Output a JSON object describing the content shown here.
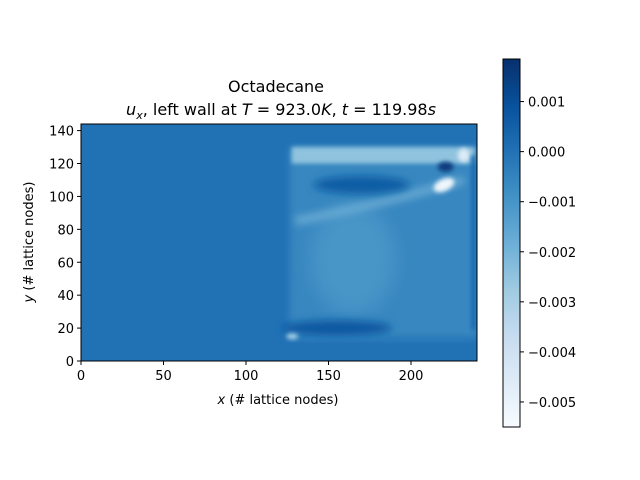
{
  "chart_data": {
    "type": "heatmap",
    "title": "Octadecane",
    "subtitle": {
      "prefix_symbol": "u",
      "prefix_sub": "x",
      "mid_text": ", left wall at ",
      "t_sym": "T",
      "t_val": " = 923.0",
      "t_unit": "K",
      "sep": ", ",
      "time_sym": "t",
      "time_val": " = 119.98",
      "time_unit": "s"
    },
    "xlabel": {
      "var": "x",
      "text": " (# lattice nodes)"
    },
    "ylabel": {
      "var": "y",
      "text": " (# lattice nodes)"
    },
    "xlim": [
      0,
      240
    ],
    "ylim": [
      0,
      144
    ],
    "x_ticks": [
      0,
      50,
      100,
      150,
      200
    ],
    "y_ticks": [
      0,
      20,
      40,
      60,
      80,
      100,
      120,
      140
    ],
    "colormap": "Blues",
    "colorbar": {
      "range": [
        -0.0055,
        0.00185
      ],
      "ticks": [
        0.001,
        0.0,
        -0.001,
        -0.002,
        -0.003,
        -0.004,
        -0.005
      ],
      "tick_labels": [
        "0.001",
        "0.000",
        "−0.001",
        "−0.002",
        "−0.003",
        "−0.004",
        "−0.005"
      ]
    },
    "field": {
      "background_value": 0.0,
      "melt_region": {
        "x": [
          124,
          240
        ],
        "y": [
          13,
          131
        ]
      },
      "features": [
        {
          "kind": "cavity_interior",
          "value": -0.0006
        },
        {
          "kind": "top_band",
          "x": [
            124,
            240
          ],
          "y": [
            120,
            130
          ],
          "value": -0.0025
        },
        {
          "kind": "top_jet_core",
          "x": 170,
          "y": 107,
          "value": 0.0006
        },
        {
          "kind": "hot_corner_spot",
          "x": 221,
          "y": 118,
          "value": 0.0015
        },
        {
          "kind": "cold_spot",
          "x": 220,
          "y": 107,
          "value": -0.0052
        },
        {
          "kind": "cold_spot",
          "x": 232,
          "y": 125,
          "value": -0.0045
        },
        {
          "kind": "bottom_return_flow",
          "x": 155,
          "y": 20,
          "value": 0.0007
        },
        {
          "kind": "bottom_left_cold",
          "x": 128,
          "y": 15,
          "value": -0.003
        }
      ]
    }
  }
}
